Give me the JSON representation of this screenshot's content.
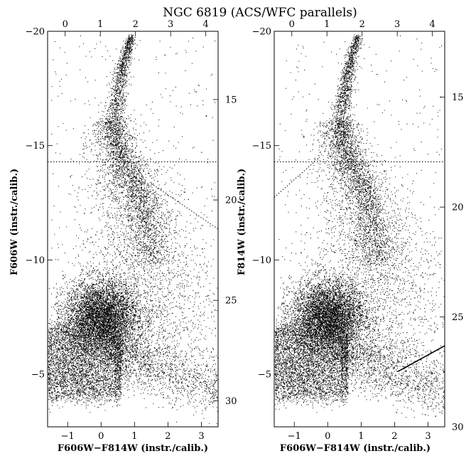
{
  "chart_data": [
    {
      "type": "scatter",
      "panel": "left",
      "title": "NGC 6819 (ACS/WFC parallels)",
      "xlabel": "F606W−F814W (instr./calib.)",
      "ylabel": "F606W (instr./calib.)",
      "x_bottom": {
        "label": "F606W−F814W (instr./calib.)",
        "range": [
          -1.6,
          3.5
        ],
        "ticks": [
          -1,
          0,
          1,
          2,
          3
        ],
        "tick_labels": [
          "−1",
          "0",
          "1",
          "2",
          "3"
        ]
      },
      "x_top": {
        "range": [
          -0.5,
          4.35
        ],
        "ticks": [
          0,
          1,
          2,
          3,
          4
        ],
        "tick_labels": [
          "0",
          "1",
          "2",
          "3",
          "4"
        ]
      },
      "y_left": {
        "label": "F606W (instr./calib.)",
        "range": [
          -20,
          -2.7
        ],
        "inverted": true,
        "ticks": [
          -20,
          -15,
          -10,
          -5
        ],
        "tick_labels": [
          "−20",
          "−15",
          "−10",
          "−5"
        ]
      },
      "y_right": {
        "range": [
          11.6,
          31.3
        ],
        "inverted": true,
        "ticks": [
          15,
          20,
          25,
          30
        ],
        "tick_labels": [
          "15",
          "20",
          "25",
          "30"
        ]
      },
      "features": {
        "main_sequence": [
          {
            "x": 0.9,
            "y": 19.8
          },
          {
            "x": 0.62,
            "y": 18.2
          },
          {
            "x": 0.42,
            "y": 16.0
          },
          {
            "x": 0.4,
            "y": 15.0
          },
          {
            "x": 0.5,
            "y": 14.2
          },
          {
            "x": 0.72,
            "y": 13.2
          },
          {
            "x": 1.0,
            "y": 12.2
          },
          {
            "x": 1.25,
            "y": 11.0
          },
          {
            "x": 1.35,
            "y": 9.9
          },
          {
            "x": 1.42,
            "y": 9.0
          },
          {
            "x": 1.45,
            "y": 8.4
          }
        ],
        "field_clump_center": {
          "x": 0.0,
          "y": 5.6
        },
        "dotted_horizontal_y": 13.4,
        "dotted_diagonal": [
          {
            "x": 1.5,
            "y": 12.3
          },
          {
            "x": 3.5,
            "y": 10.0
          }
        ]
      }
    },
    {
      "type": "scatter",
      "panel": "right",
      "xlabel": "F606W−F814W (instr./calib.)",
      "ylabel": "F814W (instr./calib.)",
      "x_bottom": {
        "label": "F606W−F814W (instr./calib.)",
        "range": [
          -1.6,
          3.5
        ],
        "ticks": [
          -1,
          0,
          1,
          2,
          3
        ],
        "tick_labels": [
          "−1",
          "0",
          "1",
          "2",
          "3"
        ]
      },
      "x_top": {
        "range": [
          -0.5,
          4.35
        ],
        "ticks": [
          0,
          1,
          2,
          3,
          4
        ],
        "tick_labels": [
          "0",
          "1",
          "2",
          "3",
          "4"
        ]
      },
      "y_left": {
        "label": "F814W (instr./calib.)",
        "range": [
          -20,
          -2.7
        ],
        "inverted": true,
        "ticks": [
          -20,
          -15,
          -10,
          -5
        ],
        "tick_labels": [
          "−20",
          "−15",
          "−10",
          "−5"
        ]
      },
      "y_right": {
        "range": [
          12.0,
          30.0
        ],
        "inverted": true,
        "ticks": [
          15,
          20,
          25,
          30
        ],
        "tick_labels": [
          "15",
          "20",
          "25",
          "30"
        ]
      },
      "features": {
        "main_sequence": [
          {
            "x": 0.9,
            "y": 19.8
          },
          {
            "x": 0.62,
            "y": 18.2
          },
          {
            "x": 0.42,
            "y": 16.0
          },
          {
            "x": 0.4,
            "y": 15.0
          },
          {
            "x": 0.5,
            "y": 14.2
          },
          {
            "x": 0.72,
            "y": 13.2
          },
          {
            "x": 1.0,
            "y": 12.2
          },
          {
            "x": 1.25,
            "y": 11.0
          },
          {
            "x": 1.35,
            "y": 9.9
          },
          {
            "x": 1.42,
            "y": 9.0
          },
          {
            "x": 1.45,
            "y": 8.4
          }
        ],
        "field_clump_center": {
          "x": 0.0,
          "y": 5.6
        },
        "dotted_horizontal_y": 13.4,
        "dotted_diagonal": [
          {
            "x": -1.6,
            "y": 11.6
          },
          {
            "x": -0.4,
            "y": 13.4
          }
        ],
        "limit_line": [
          {
            "x": 2.1,
            "y": 2.8
          },
          {
            "x": 3.5,
            "y": 4.1
          }
        ]
      }
    }
  ]
}
